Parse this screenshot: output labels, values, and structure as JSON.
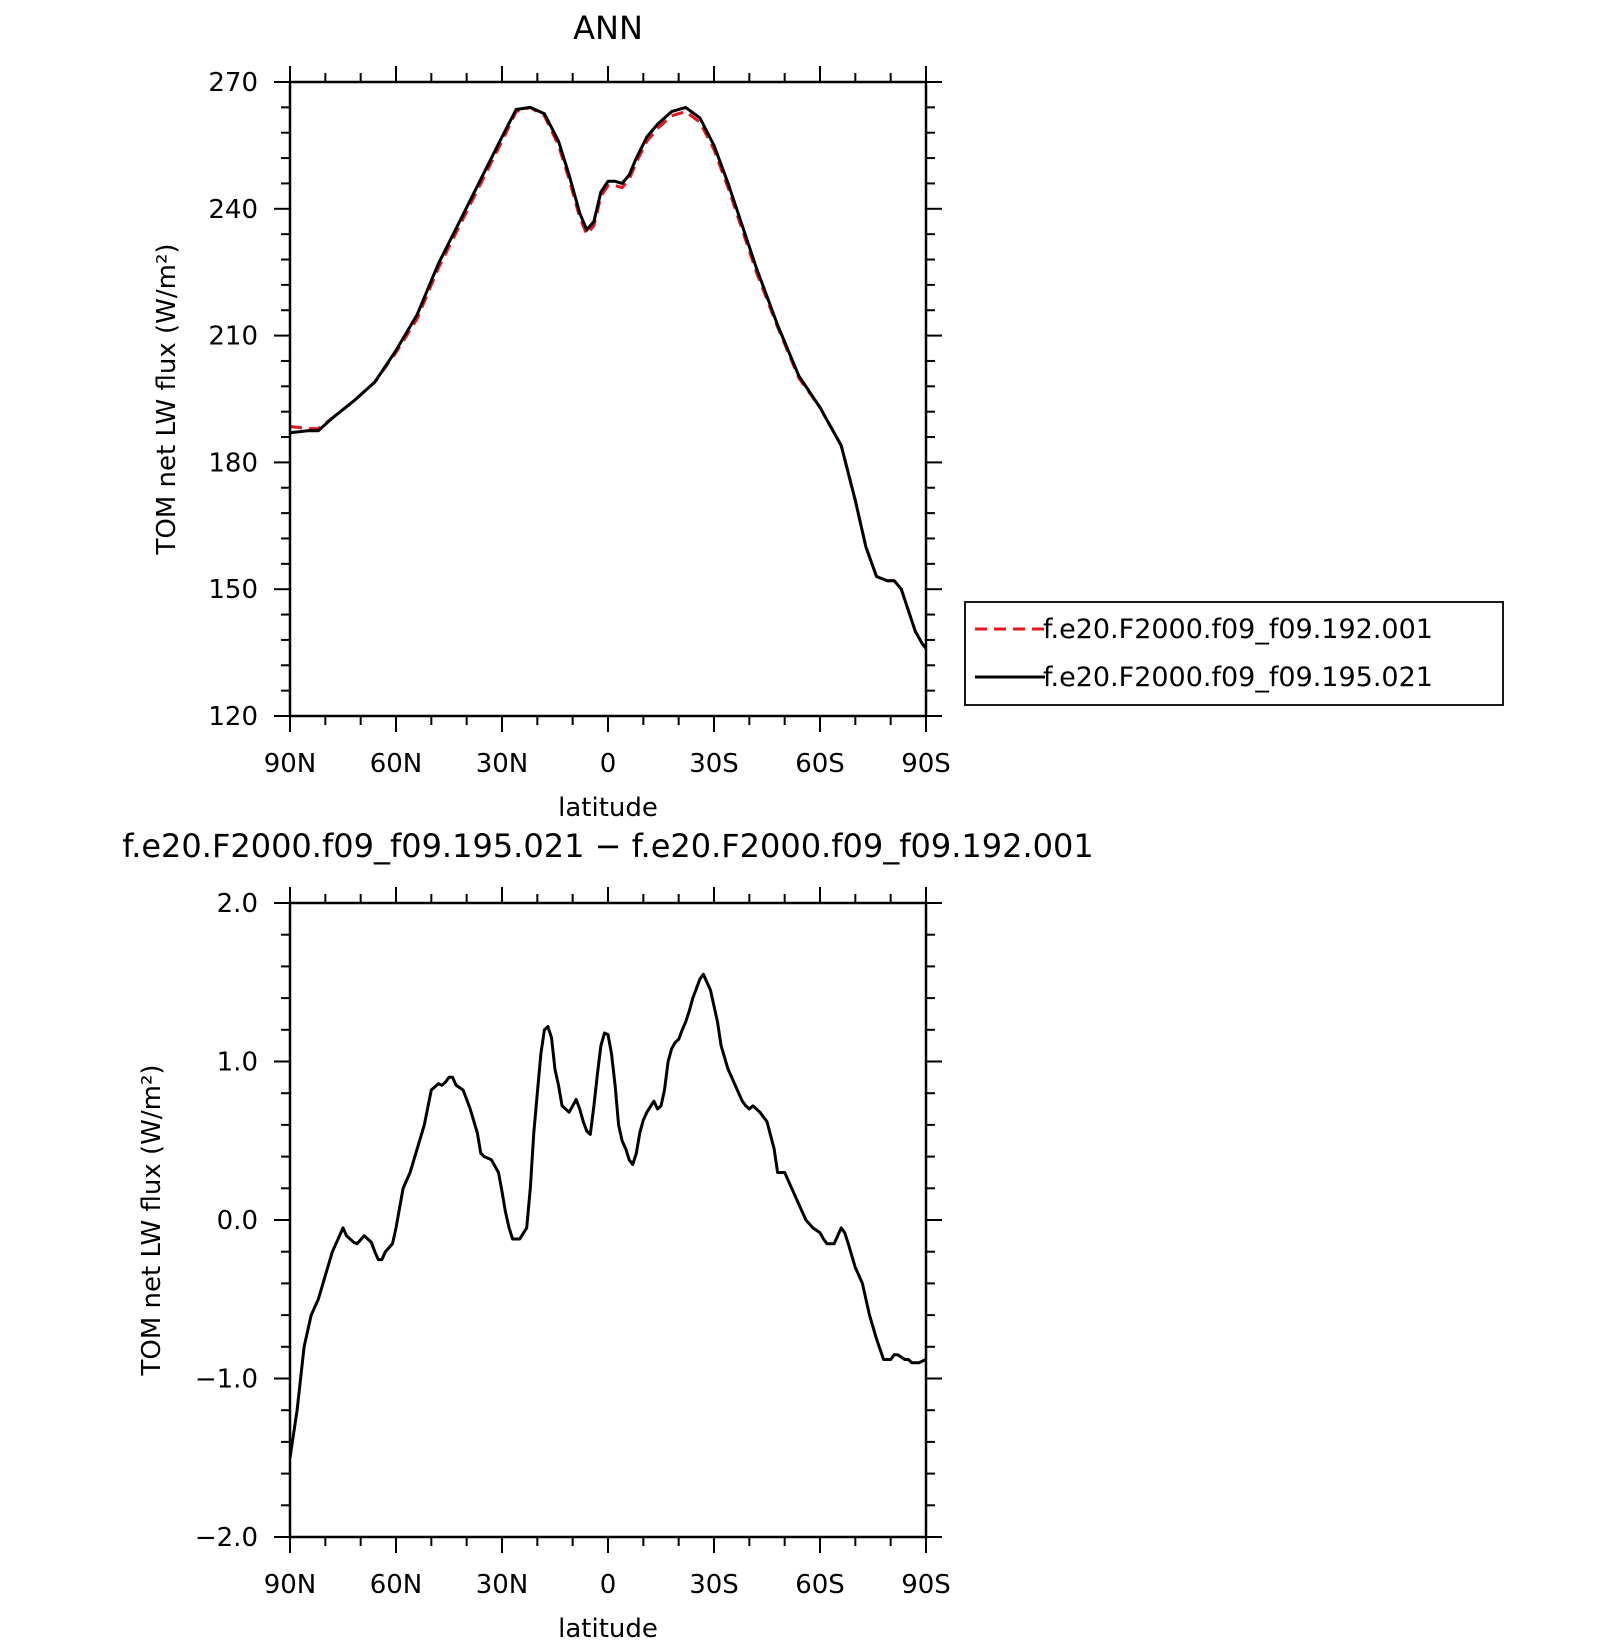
{
  "chart_data": [
    {
      "type": "line",
      "title": "ANN",
      "xlabel": "latitude",
      "ylabel": "TOM net LW flux (W/m²)",
      "xlim": [
        90,
        -90
      ],
      "ylim": [
        120,
        270
      ],
      "x_ticks": [
        90,
        60,
        30,
        0,
        -30,
        -60,
        -90
      ],
      "x_tick_labels": [
        "90N",
        "60N",
        "30N",
        "0",
        "30S",
        "60S",
        "90S"
      ],
      "y_ticks": [
        120,
        150,
        180,
        210,
        240,
        270
      ],
      "y_tick_labels": [
        "120",
        "150",
        "180",
        "210",
        "240",
        "270"
      ],
      "legend_position": "right",
      "series": [
        {
          "name": "f.e20.F2000.f09_f09.192.001",
          "color": "#e8141b",
          "style": "dashed",
          "x": [
            90,
            85,
            82,
            78,
            72,
            66,
            60,
            54,
            48,
            42,
            36,
            30,
            26,
            22,
            18,
            14,
            11,
            8,
            6,
            4,
            2,
            0,
            -2,
            -4,
            -6,
            -8,
            -11,
            -14,
            -18,
            -22,
            -26,
            -30,
            -34,
            -38,
            -42,
            -48,
            -54,
            -60,
            -66,
            -70,
            -73,
            -76,
            -79,
            -81,
            -83,
            -85,
            -87,
            -89,
            -90
          ],
          "values": [
            188.5,
            188.0,
            188.0,
            190.5,
            194.5,
            199,
            206,
            214,
            226,
            236,
            246,
            256,
            263,
            264,
            262,
            255,
            247,
            238,
            234,
            236,
            243,
            245.5,
            245.5,
            245,
            247,
            251,
            256,
            259,
            262,
            263,
            260.5,
            254,
            245,
            235,
            225,
            212,
            200,
            193,
            184,
            171,
            160,
            153,
            152,
            152,
            150,
            145,
            140,
            137,
            136
          ]
        },
        {
          "name": "f.e20.F2000.f09_f09.195.021",
          "color": "#000000",
          "style": "solid",
          "x": [
            90,
            85,
            82,
            78,
            72,
            66,
            60,
            54,
            48,
            42,
            36,
            30,
            26,
            22,
            18,
            14,
            11,
            8,
            6,
            4,
            2,
            0,
            -2,
            -4,
            -6,
            -8,
            -11,
            -14,
            -18,
            -22,
            -26,
            -30,
            -34,
            -38,
            -42,
            -48,
            -54,
            -60,
            -66,
            -70,
            -73,
            -76,
            -79,
            -81,
            -83,
            -85,
            -87,
            -89,
            -90
          ],
          "values": [
            187,
            187.5,
            187.5,
            190.5,
            194.5,
            199,
            206.5,
            215,
            227,
            237,
            247,
            257,
            263.5,
            264,
            262.5,
            256,
            248,
            239,
            235,
            237,
            244,
            246.5,
            246.5,
            246,
            248,
            252,
            257,
            260,
            263,
            264,
            261.5,
            255,
            246,
            236,
            226,
            212.5,
            200.5,
            193,
            184,
            171,
            160,
            153,
            152,
            152,
            150,
            145,
            140,
            137,
            136
          ]
        }
      ]
    },
    {
      "type": "line",
      "title": "f.e20.F2000.f09_f09.195.021 − f.e20.F2000.f09_f09.192.001",
      "xlabel": "latitude",
      "ylabel": "TOM net LW flux (W/m²)",
      "xlim": [
        90,
        -90
      ],
      "ylim": [
        -2.0,
        2.0
      ],
      "x_ticks": [
        90,
        60,
        30,
        0,
        -30,
        -60,
        -90
      ],
      "x_tick_labels": [
        "90N",
        "60N",
        "30N",
        "0",
        "30S",
        "60S",
        "90S"
      ],
      "y_ticks": [
        -2.0,
        -1.0,
        0.0,
        1.0,
        2.0
      ],
      "y_tick_labels": [
        "−2.0",
        "−1.0",
        "0.0",
        "1.0",
        "2.0"
      ],
      "series": [
        {
          "color": "#000000",
          "style": "solid",
          "x": [
            90,
            88,
            86,
            84,
            83,
            82,
            80,
            78,
            76,
            75,
            74,
            73,
            72,
            71,
            69,
            67,
            66,
            65,
            64,
            63,
            61,
            60,
            58,
            56,
            54,
            52,
            50,
            48,
            47,
            46,
            45,
            44,
            43,
            41,
            40,
            39,
            37,
            36,
            35,
            33,
            31,
            30,
            29,
            28,
            27,
            26,
            25,
            23,
            22,
            21,
            20,
            19,
            18,
            17,
            16,
            15,
            14,
            13,
            12,
            11,
            10,
            9,
            8,
            7,
            6,
            5,
            4,
            3,
            2,
            1,
            0,
            -1,
            -2,
            -3,
            -4,
            -5,
            -6,
            -7,
            -8,
            -9,
            -10,
            -11,
            -13,
            -14,
            -15,
            -16,
            -17,
            -18,
            -19,
            -20,
            -21,
            -22,
            -23,
            -24,
            -26,
            -27,
            -29,
            -31,
            -32,
            -34,
            -35,
            -36,
            -37,
            -38,
            -39,
            -40,
            -41,
            -42,
            -43,
            -45,
            -47,
            -48,
            -50,
            -52,
            -54,
            -56,
            -58,
            -60,
            -61,
            -62,
            -64,
            -65,
            -66,
            -67,
            -68,
            -70,
            -72,
            -74,
            -76,
            -78,
            -80,
            -81,
            -82,
            -84,
            -85,
            -86,
            -88,
            -90
          ],
          "values": [
            -1.5,
            -1.2,
            -0.8,
            -0.6,
            -0.55,
            -0.5,
            -0.35,
            -0.2,
            -0.1,
            -0.05,
            -0.1,
            -0.12,
            -0.14,
            -0.15,
            -0.1,
            -0.14,
            -0.2,
            -0.25,
            -0.25,
            -0.2,
            -0.15,
            -0.05,
            0.2,
            0.3,
            0.45,
            0.6,
            0.82,
            0.86,
            0.85,
            0.87,
            0.9,
            0.9,
            0.85,
            0.82,
            0.76,
            0.7,
            0.55,
            0.42,
            0.4,
            0.38,
            0.3,
            0.18,
            0.05,
            -0.05,
            -0.12,
            -0.12,
            -0.12,
            -0.05,
            0.2,
            0.55,
            0.8,
            1.05,
            1.2,
            1.22,
            1.15,
            0.95,
            0.85,
            0.72,
            0.7,
            0.68,
            0.72,
            0.76,
            0.7,
            0.62,
            0.56,
            0.54,
            0.72,
            0.92,
            1.1,
            1.18,
            1.17,
            1.05,
            0.85,
            0.6,
            0.5,
            0.45,
            0.38,
            0.35,
            0.42,
            0.55,
            0.63,
            0.68,
            0.75,
            0.7,
            0.72,
            0.82,
            1.0,
            1.08,
            1.12,
            1.14,
            1.2,
            1.25,
            1.32,
            1.4,
            1.52,
            1.55,
            1.45,
            1.25,
            1.1,
            0.95,
            0.9,
            0.85,
            0.8,
            0.75,
            0.72,
            0.7,
            0.72,
            0.7,
            0.68,
            0.62,
            0.45,
            0.3,
            0.3,
            0.2,
            0.1,
            0.0,
            -0.05,
            -0.08,
            -0.12,
            -0.15,
            -0.15,
            -0.1,
            -0.05,
            -0.08,
            -0.15,
            -0.3,
            -0.4,
            -0.6,
            -0.75,
            -0.88,
            -0.88,
            -0.85,
            -0.85,
            -0.88,
            -0.88,
            -0.9,
            -0.9,
            -0.88
          ]
        }
      ]
    }
  ]
}
